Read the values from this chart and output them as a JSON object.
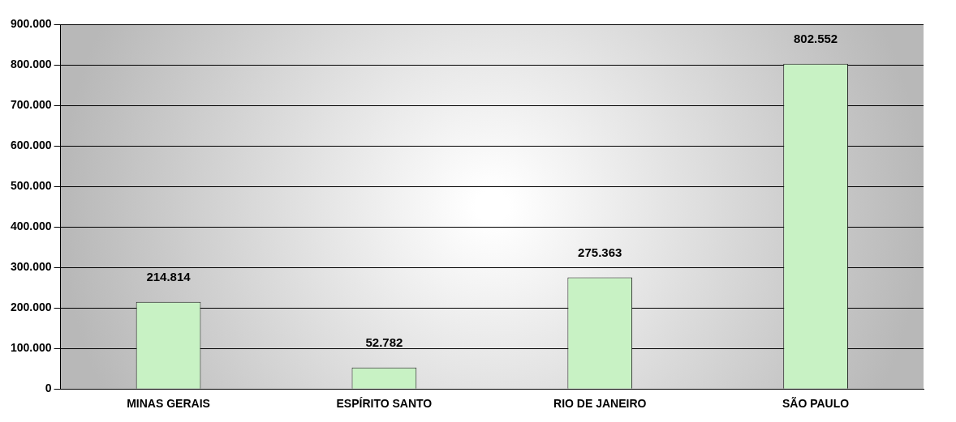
{
  "chart_data": {
    "type": "bar",
    "categories": [
      "MINAS GERAIS",
      "ESPÍRITO SANTO",
      "RIO DE JANEIRO",
      "SÃO PAULO"
    ],
    "values": [
      214814,
      52782,
      275363,
      802552
    ],
    "value_labels": [
      "214.814",
      "52.782",
      "275.363",
      "802.552"
    ],
    "color": "#c8f2c4",
    "ylim": [
      0,
      900000
    ],
    "yticks": [
      {
        "value": 0,
        "label": "0"
      },
      {
        "value": 100000,
        "label": "100.000"
      },
      {
        "value": 200000,
        "label": "200.000"
      },
      {
        "value": 300000,
        "label": "300.000"
      },
      {
        "value": 400000,
        "label": "400.000"
      },
      {
        "value": 500000,
        "label": "500.000"
      },
      {
        "value": 600000,
        "label": "600.000"
      },
      {
        "value": 700000,
        "label": "700.000"
      },
      {
        "value": 800000,
        "label": "800.000"
      },
      {
        "value": 900000,
        "label": "900.000"
      }
    ],
    "grid": "y",
    "legend": false
  }
}
